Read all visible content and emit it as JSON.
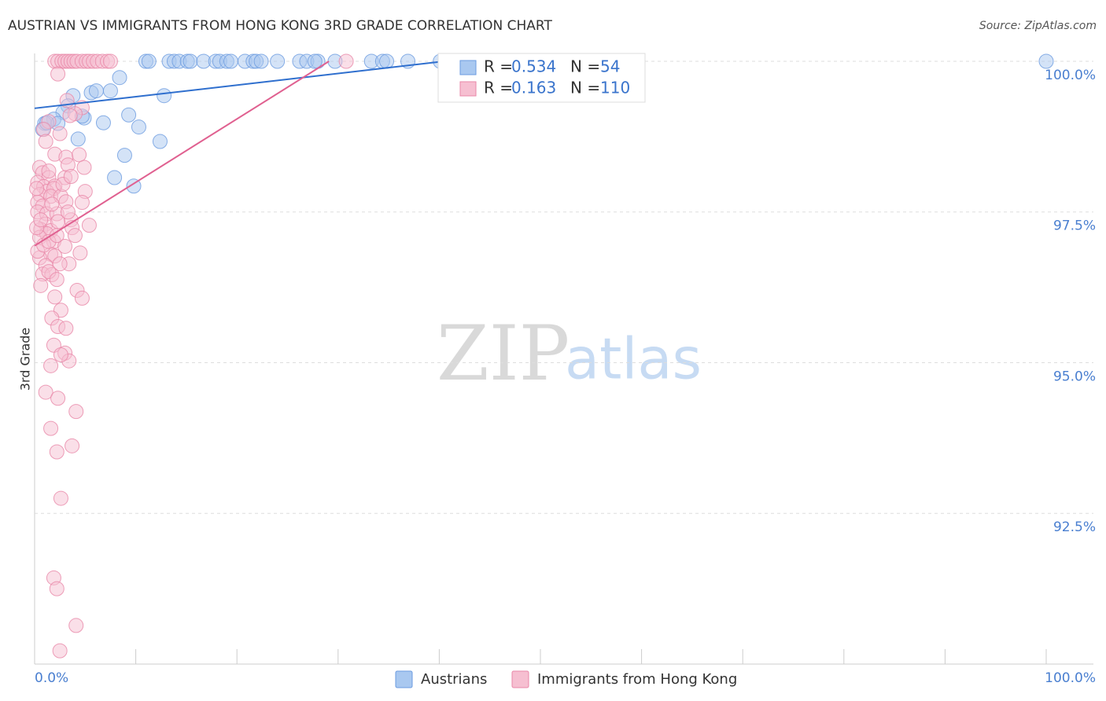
{
  "chart_data": {
    "type": "scatter",
    "title": "AUSTRIAN VS IMMIGRANTS FROM HONG KONG 3RD GRADE CORRELATION CHART",
    "source": "Source: ZipAtlas.com",
    "watermark": [
      "ZIP",
      "atlas"
    ],
    "y_label": "3rd Grade",
    "xlim": [
      0,
      100
    ],
    "ylim": [
      90,
      100.1
    ],
    "xticks": [
      {
        "value": 0,
        "label": "0.0%"
      },
      {
        "value": 10,
        "label": null
      },
      {
        "value": 20,
        "label": null
      },
      {
        "value": 30,
        "label": null
      },
      {
        "value": 40,
        "label": null
      },
      {
        "value": 50,
        "label": null
      },
      {
        "value": 60,
        "label": null
      },
      {
        "value": 70,
        "label": null
      },
      {
        "value": 80,
        "label": null
      },
      {
        "value": 90,
        "label": null
      },
      {
        "value": 100,
        "label": "100.0%"
      }
    ],
    "yticks": [
      {
        "value": 92.5,
        "label": "92.5%"
      },
      {
        "value": 95,
        "label": "95.0%"
      },
      {
        "value": 97.5,
        "label": "97.5%"
      },
      {
        "value": 100,
        "label": "100.0%"
      }
    ],
    "grid": true,
    "stat_labels": {
      "r": "R =",
      "n": "N ="
    },
    "series": [
      {
        "name": "Austrians",
        "color": "#6b9be0",
        "fill": "#a9c8f0",
        "trend_color": "#2f6fce",
        "r": 0.534,
        "n": 54,
        "trend": {
          "x": [
            0,
            40.5
          ],
          "y": [
            99.22,
            100
          ]
        },
        "x": [
          11.0,
          11.3,
          13.3,
          13.8,
          14.3,
          15.1,
          15.4,
          16.7,
          17.9,
          18.3,
          19.0,
          19.4,
          20.8,
          21.6,
          21.9,
          22.4,
          24.0,
          26.2,
          26.9,
          28.0,
          29.7,
          33.3,
          34.4,
          34.8,
          36.9,
          40.9,
          54.5,
          100.0,
          8.4,
          5.6,
          6.1,
          7.5,
          12.8,
          3.8,
          3.3,
          2.8,
          1.9,
          1.0,
          2.3,
          0.8,
          4.9,
          6.8,
          9.3,
          10.3,
          4.3,
          12.4,
          8.9,
          7.9,
          9.8,
          1.2,
          4.7,
          27.7,
          45.6,
          40.1
        ],
        "values": [
          100,
          100,
          100,
          100,
          100,
          100,
          100,
          100,
          100,
          100,
          100,
          100,
          100,
          100,
          100,
          100,
          100,
          100,
          100,
          100,
          100,
          100,
          100,
          100,
          100,
          100,
          100,
          100,
          99.73,
          99.48,
          99.51,
          99.51,
          99.43,
          99.43,
          99.26,
          99.15,
          99.04,
          98.97,
          98.97,
          98.87,
          99.06,
          98.98,
          99.11,
          98.91,
          98.71,
          98.67,
          98.44,
          98.07,
          97.93,
          98.98,
          99.09,
          100,
          100,
          100
        ]
      },
      {
        "name": "Immigrants from Hong Kong",
        "color": "#e987a8",
        "fill": "#f6bfd1",
        "trend_color": "#e06090",
        "r": 0.163,
        "n": 110,
        "trend": {
          "x": [
            0,
            29.1
          ],
          "y": [
            96.94,
            100
          ]
        },
        "x": [
          2.0,
          2.3,
          2.7,
          3.0,
          3.3,
          3.6,
          3.9,
          4.2,
          4.7,
          5.1,
          5.4,
          5.8,
          6.2,
          6.7,
          7.2,
          7.5,
          30.8,
          2.3,
          3.2,
          4.7,
          4.0,
          3.5,
          1.4,
          2.5,
          0.9,
          1.1,
          2.0,
          3.1,
          4.4,
          3.3,
          0.5,
          4.9,
          0.8,
          1.4,
          3.0,
          0.3,
          0.9,
          2.0,
          1.2,
          1.9,
          5.0,
          0.5,
          1.6,
          2.6,
          0.3,
          0.8,
          4.7,
          3.1,
          0.3,
          1.2,
          3.6,
          2.2,
          5.4,
          1.1,
          0.6,
          1.6,
          2.3,
          1.2,
          0.5,
          3.7,
          1.9,
          3.0,
          1.6,
          4.5,
          0.5,
          2.0,
          3.4,
          1.1,
          2.5,
          0.8,
          1.7,
          1.4,
          2.2,
          0.6,
          4.2,
          2.0,
          4.7,
          2.6,
          1.7,
          2.3,
          3.1,
          1.9,
          3.0,
          3.4,
          2.6,
          1.6,
          1.1,
          2.3,
          4.1,
          1.6,
          3.7,
          2.2,
          2.6,
          1.9,
          2.2,
          4.1,
          2.5,
          0.3,
          0.9,
          1.4,
          0.2,
          0.6,
          0.2,
          1.4,
          2.8,
          3.6,
          1.7,
          4.0,
          2.2,
          3.3
        ],
        "values": [
          100,
          100,
          100,
          100,
          100,
          100,
          100,
          100,
          100,
          100,
          100,
          100,
          100,
          100,
          100,
          100,
          100,
          99.79,
          99.35,
          99.23,
          99.13,
          99.1,
          99.0,
          98.8,
          98.87,
          98.67,
          98.46,
          98.41,
          98.45,
          98.28,
          98.24,
          98.24,
          98.15,
          98.07,
          98.07,
          97.99,
          97.92,
          97.93,
          97.84,
          97.89,
          97.84,
          97.79,
          97.76,
          97.76,
          97.66,
          97.6,
          97.66,
          97.67,
          97.5,
          97.47,
          97.37,
          97.47,
          97.28,
          97.3,
          97.21,
          97.19,
          97.34,
          97.14,
          97.08,
          97.24,
          97.01,
          96.93,
          96.8,
          96.82,
          96.74,
          96.77,
          96.64,
          96.61,
          96.64,
          96.47,
          96.46,
          96.51,
          96.38,
          96.28,
          96.2,
          96.09,
          96.07,
          95.87,
          95.74,
          95.6,
          95.57,
          95.29,
          95.16,
          95.03,
          95.13,
          94.95,
          94.51,
          94.41,
          94.19,
          93.91,
          93.62,
          93.52,
          92.75,
          91.43,
          91.25,
          90.64,
          90.22,
          96.85,
          96.95,
          97.01,
          97.24,
          97.37,
          97.89,
          98.18,
          97.96,
          98.09,
          97.63,
          97.11,
          97.11,
          97.5
        ]
      }
    ]
  }
}
